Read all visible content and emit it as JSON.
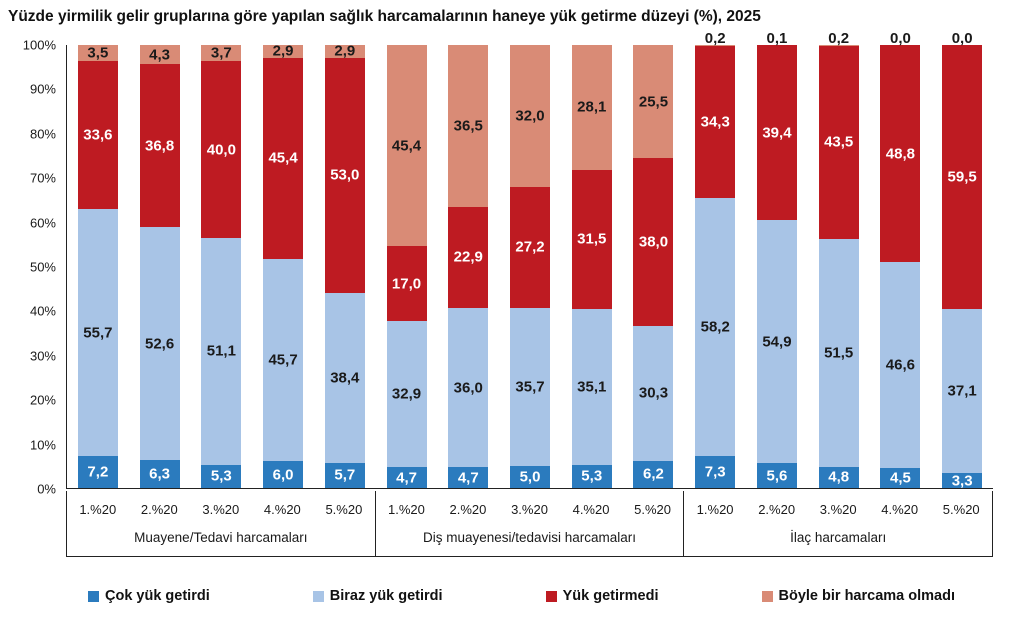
{
  "title": "Yüzde yirmilik gelir gruplarına göre yapılan sağlık harcamalarının haneye yük getirme düzeyi (%), 2025",
  "colors": {
    "cok_yuk": "#2B7BBE",
    "biraz_yuk": "#A8C4E6",
    "yuk_getirmedi": "#BE1B22",
    "harcama_olmadi": "#D98B76",
    "axis_line": "#222222",
    "text": "#1a1a1a"
  },
  "chart_data": {
    "type": "bar",
    "stacked": true,
    "orientation": "vertical",
    "unit": "%",
    "ylim": [
      0,
      100
    ],
    "grid": false,
    "decimal_separator": ",",
    "y_ticks": [
      "0%",
      "10%",
      "20%",
      "30%",
      "40%",
      "50%",
      "60%",
      "70%",
      "80%",
      "90%",
      "100%"
    ],
    "categories": [
      "1.%20",
      "2.%20",
      "3.%20",
      "4.%20",
      "5.%20"
    ],
    "series_order_bottom_to_top": [
      "Çok yük getirdi",
      "Biraz yük getirdi",
      "Yük getirmedi",
      "Böyle bir harcama olmadı"
    ],
    "groups": [
      {
        "label": "Muayene/Tedavi harcamaları",
        "series": [
          {
            "name": "Çok yük getirdi",
            "values": [
              7.2,
              6.3,
              5.3,
              6.0,
              5.7
            ]
          },
          {
            "name": "Biraz yük getirdi",
            "values": [
              55.7,
              52.6,
              51.1,
              45.7,
              38.4
            ]
          },
          {
            "name": "Yük getirmedi",
            "values": [
              33.6,
              36.8,
              40.0,
              45.4,
              53.0
            ]
          },
          {
            "name": "Böyle bir harcama olmadı",
            "values": [
              3.5,
              4.3,
              3.7,
              2.9,
              2.9
            ]
          }
        ]
      },
      {
        "label": "Diş muayenesi/tedavisi harcamaları",
        "series": [
          {
            "name": "Çok yük getirdi",
            "values": [
              4.7,
              4.7,
              5.0,
              5.3,
              6.2
            ]
          },
          {
            "name": "Biraz yük getirdi",
            "values": [
              32.9,
              36.0,
              35.7,
              35.1,
              30.3
            ]
          },
          {
            "name": "Yük getirmedi",
            "values": [
              17.0,
              22.9,
              27.2,
              31.5,
              38.0
            ]
          },
          {
            "name": "Böyle bir harcama olmadı",
            "values": [
              45.4,
              36.5,
              32.0,
              28.1,
              25.5
            ]
          }
        ]
      },
      {
        "label": "İlaç harcamaları",
        "series": [
          {
            "name": "Çok yük getirdi",
            "values": [
              7.3,
              5.6,
              4.8,
              4.5,
              3.3
            ]
          },
          {
            "name": "Biraz yük getirdi",
            "values": [
              58.2,
              54.9,
              51.5,
              46.6,
              37.1
            ]
          },
          {
            "name": "Yük getirmedi",
            "values": [
              34.3,
              39.4,
              43.5,
              48.8,
              59.5
            ]
          },
          {
            "name": "Böyle bir harcama olmadı",
            "values": [
              0.2,
              0.1,
              0.2,
              0.0,
              0.0
            ]
          }
        ]
      }
    ],
    "legend_position": "bottom",
    "legend": [
      {
        "label": "Çok yük getirdi",
        "color": "#2B7BBE",
        "label_text_color": "#ffffff"
      },
      {
        "label": "Biraz yük getirdi",
        "color": "#A8C4E6",
        "label_text_color": "#1a1a1a"
      },
      {
        "label": "Yük getirmedi",
        "color": "#BE1B22",
        "label_text_color": "#ffffff"
      },
      {
        "label": "Böyle bir harcama olmadı",
        "color": "#D98B76",
        "label_text_color": "#1a1a1a"
      }
    ]
  }
}
